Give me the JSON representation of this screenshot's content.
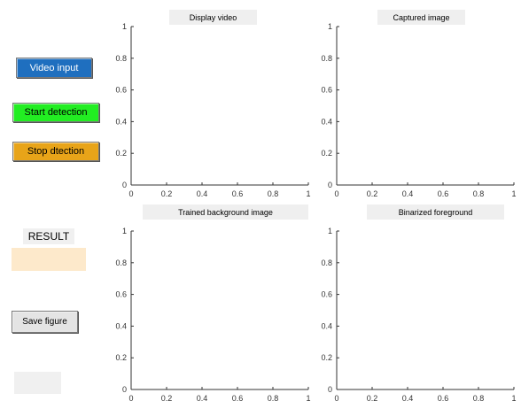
{
  "buttons": {
    "video_input": "Video input",
    "start_detection": "Start detection",
    "stop_detection": "Stop dtection",
    "save_figure": "Save figure"
  },
  "result": {
    "label": "RESULT"
  },
  "panels": [
    {
      "title": "Display video"
    },
    {
      "title": "Captured image"
    },
    {
      "title": "Trained background image"
    },
    {
      "title": "Binarized foreground"
    }
  ],
  "axes": {
    "x_ticks": [
      "0",
      "0.2",
      "0.4",
      "0.6",
      "0.8",
      "1"
    ],
    "y_ticks": [
      "0",
      "0.2",
      "0.4",
      "0.6",
      "0.8",
      "1"
    ]
  },
  "colors": {
    "video_input": "#1f6fbf",
    "start_detection": "#22ee22",
    "stop_detection": "#e8a419",
    "result_box": "#fde9cb"
  }
}
